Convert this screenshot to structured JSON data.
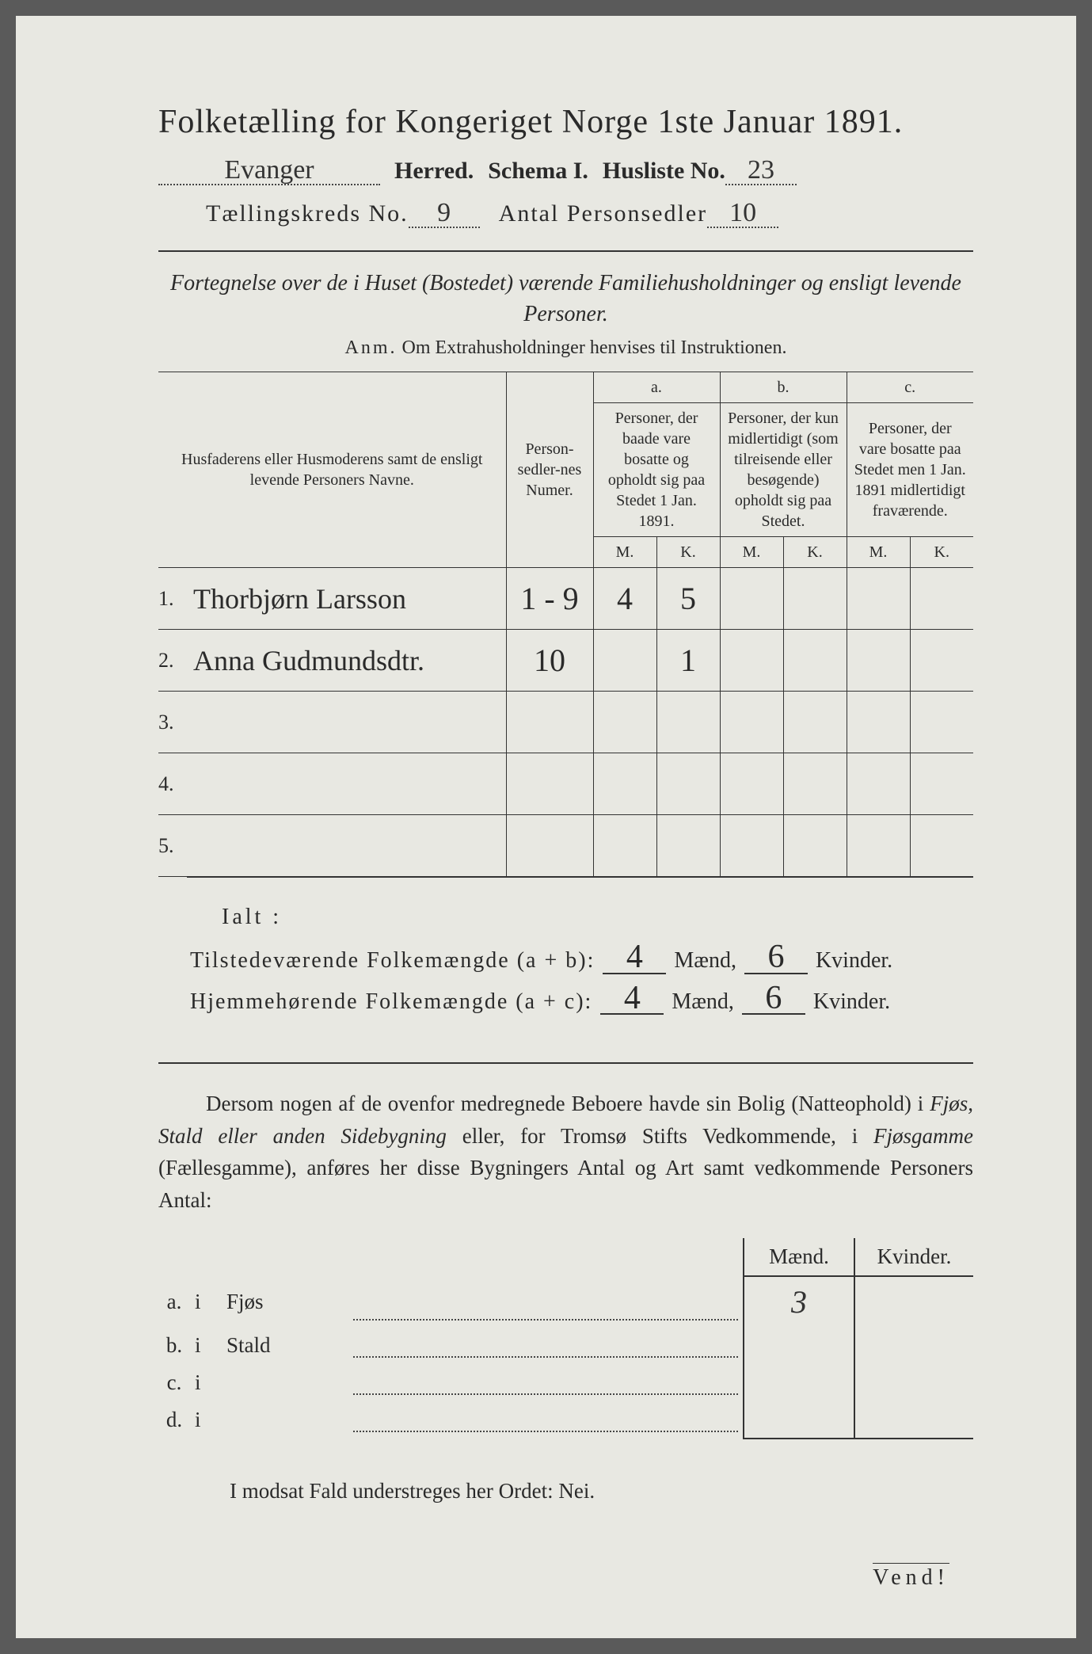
{
  "title": "Folketælling for Kongeriget Norge 1ste Januar 1891.",
  "header": {
    "herred_value": "Evanger",
    "herred_label": "Herred.",
    "schema_label": "Schema I.",
    "husliste_label": "Husliste No.",
    "husliste_value": "23",
    "kreds_label": "Tællingskreds No.",
    "kreds_value": "9",
    "personsedler_label": "Antal Personsedler",
    "personsedler_value": "10"
  },
  "intro": "Fortegnelse over de i Huset (Bostedet) værende Familiehusholdninger og ensligt levende Personer.",
  "anm_label": "Anm.",
  "anm_text": "Om Extrahusholdninger henvises til Instruktionen.",
  "table": {
    "col_names": "Husfaderens eller Husmoderens samt de ensligt levende Personers Navne.",
    "col_num": "Person-sedler-nes Numer.",
    "col_a_letter": "a.",
    "col_a": "Personer, der baade vare bosatte og opholdt sig paa Stedet 1 Jan. 1891.",
    "col_b_letter": "b.",
    "col_b": "Personer, der kun midlertidigt (som tilreisende eller besøgende) opholdt sig paa Stedet.",
    "col_c_letter": "c.",
    "col_c": "Personer, der vare bosatte paa Stedet men 1 Jan. 1891 midlertidigt fraværende.",
    "m": "M.",
    "k": "K.",
    "rows": [
      {
        "n": "1.",
        "name": "Thorbjørn Larsson",
        "num": "1 - 9",
        "am": "4",
        "ak": "5",
        "bm": "",
        "bk": "",
        "cm": "",
        "ck": ""
      },
      {
        "n": "2.",
        "name": "Anna Gudmundsdtr.",
        "num": "10",
        "am": "",
        "ak": "1",
        "bm": "",
        "bk": "",
        "cm": "",
        "ck": ""
      },
      {
        "n": "3.",
        "name": "",
        "num": "",
        "am": "",
        "ak": "",
        "bm": "",
        "bk": "",
        "cm": "",
        "ck": ""
      },
      {
        "n": "4.",
        "name": "",
        "num": "",
        "am": "",
        "ak": "",
        "bm": "",
        "bk": "",
        "cm": "",
        "ck": ""
      },
      {
        "n": "5.",
        "name": "",
        "num": "",
        "am": "",
        "ak": "",
        "bm": "",
        "bk": "",
        "cm": "",
        "ck": ""
      }
    ]
  },
  "ialt": {
    "title": "Ialt :",
    "row1_label": "Tilstedeværende Folkemængde (a + b):",
    "row1_m": "4",
    "row1_k": "6",
    "row2_label": "Hjemmehørende Folkemængde (a + c):",
    "row2_m": "4",
    "row2_k": "6",
    "maend": "Mænd,",
    "kvinder": "Kvinder."
  },
  "para": {
    "text1": "Dersom nogen af de ovenfor medregnede Beboere havde sin Bolig (Natteophold) i ",
    "it1": "Fjøs, Stald eller anden Sidebygning",
    "text2": " eller, for Tromsø Stifts Vedkommende, i ",
    "it2": "Fjøsgamme",
    "text3": " (Fællesgamme), anføres her disse Bygningers Antal og Art samt vedkommende Personers Antal:"
  },
  "bottom": {
    "maend": "Mænd.",
    "kvinder": "Kvinder.",
    "rows": [
      {
        "a": "a.",
        "i": "i",
        "name": "Fjøs",
        "m": "3",
        "k": ""
      },
      {
        "a": "b.",
        "i": "i",
        "name": "Stald",
        "m": "",
        "k": ""
      },
      {
        "a": "c.",
        "i": "i",
        "name": "",
        "m": "",
        "k": ""
      },
      {
        "a": "d.",
        "i": "i",
        "name": "",
        "m": "",
        "k": ""
      }
    ]
  },
  "closing": "I modsat Fald understreges her Ordet: Nei.",
  "vend": "Vend!"
}
